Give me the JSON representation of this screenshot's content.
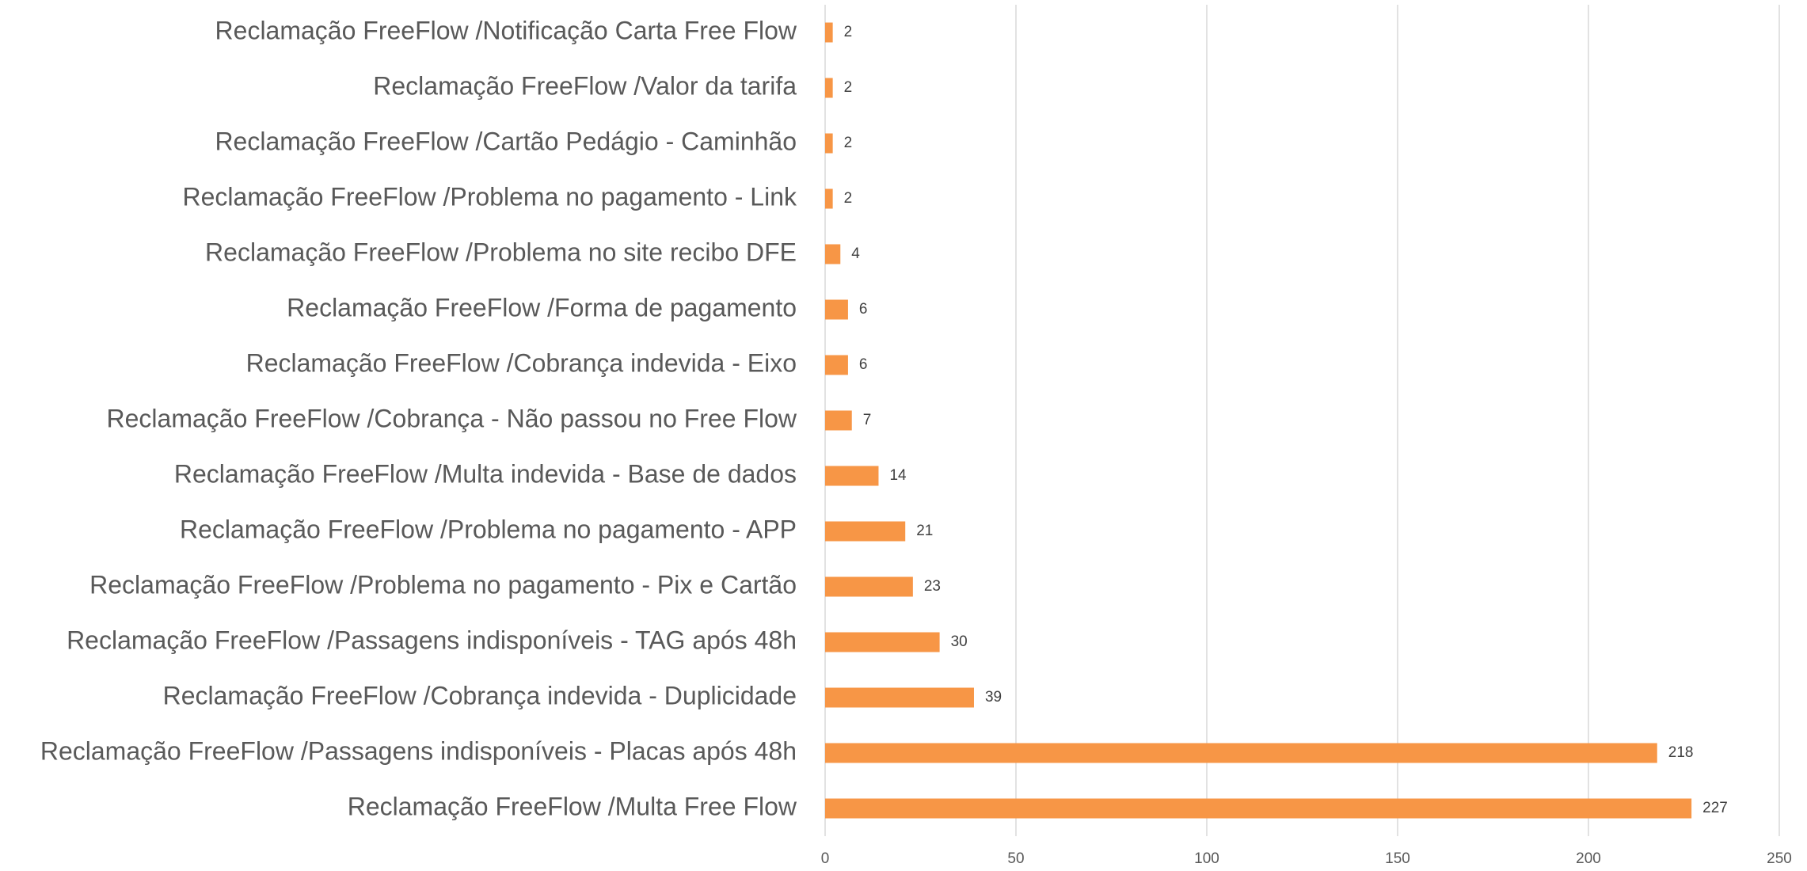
{
  "chart_data": {
    "type": "barh",
    "categories": [
      "Reclamação FreeFlow /Notificação Carta Free Flow",
      "Reclamação FreeFlow /Valor da tarifa",
      "Reclamação FreeFlow /Cartão Pedágio - Caminhão",
      "Reclamação FreeFlow /Problema no pagamento - Link",
      "Reclamação FreeFlow /Problema no site recibo DFE",
      "Reclamação FreeFlow /Forma de pagamento",
      "Reclamação FreeFlow /Cobrança indevida - Eixo",
      "Reclamação FreeFlow /Cobrança - Não passou no Free Flow",
      "Reclamação FreeFlow /Multa indevida - Base de dados",
      "Reclamação FreeFlow /Problema no pagamento - APP",
      "Reclamação FreeFlow /Problema no pagamento - Pix e Cartão",
      "Reclamação FreeFlow /Passagens indisponíveis - TAG após 48h",
      "Reclamação FreeFlow /Cobrança indevida - Duplicidade",
      "Reclamação FreeFlow /Passagens indisponíveis - Placas após 48h",
      "Reclamação FreeFlow /Multa Free Flow"
    ],
    "values": [
      2,
      2,
      2,
      2,
      4,
      6,
      6,
      7,
      14,
      21,
      23,
      30,
      39,
      218,
      227
    ],
    "color": "#f79646",
    "xlim": [
      0,
      250
    ],
    "xticks": [
      0,
      50,
      100,
      150,
      200,
      250
    ],
    "grid": true
  }
}
